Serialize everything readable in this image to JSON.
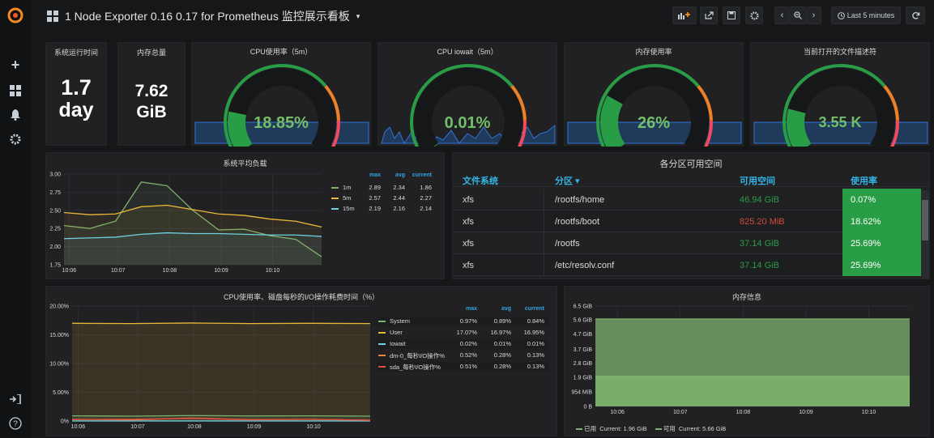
{
  "topbar": {
    "title": "1 Node Exporter 0.16 0.17 for Prometheus 监控展示看板",
    "time_range": "Last 5 minutes"
  },
  "sidebar": {
    "icons": [
      "grafana-logo-icon",
      "plus-icon",
      "dashboards-icon",
      "bell-icon",
      "gear-icon",
      "signin-icon",
      "help-icon"
    ]
  },
  "stats": {
    "uptime": {
      "title": "系统运行时间",
      "value": "1.7",
      "unit": "day"
    },
    "mem_total": {
      "title": "内存总量",
      "value": "7.62",
      "unit": "GiB"
    }
  },
  "gauges": [
    {
      "title": "CPU使用率（5m）",
      "value": "18.85%",
      "fraction": 0.1885
    },
    {
      "title": "CPU iowait（5m）",
      "value": "0.01%",
      "fraction": 0.0001
    },
    {
      "title": "内存使用率",
      "value": "26%",
      "fraction": 0.26
    },
    {
      "title": "当前打开的文件描述符",
      "value": "3.55 K",
      "fraction": 0.2
    }
  ],
  "load": {
    "title": "系统平均负载",
    "legend_headers": [
      "max",
      "avg",
      "current"
    ],
    "series": [
      {
        "name": "1m",
        "color": "#7eb26d",
        "max": "2.89",
        "avg": "2.34",
        "current": "1.86"
      },
      {
        "name": "5m",
        "color": "#eab839",
        "max": "2.57",
        "avg": "2.44",
        "current": "2.27"
      },
      {
        "name": "15m",
        "color": "#6ed0e0",
        "max": "2.19",
        "avg": "2.16",
        "current": "2.14"
      }
    ],
    "y_ticks": [
      "3.00",
      "2.75",
      "2.50",
      "2.25",
      "2.00",
      "1.75"
    ],
    "x_ticks": [
      "10:06",
      "10:07",
      "10:08",
      "10:09",
      "10:10"
    ]
  },
  "partitions": {
    "title": "各分区可用空间",
    "headers": [
      "文件系统",
      "分区 ▾",
      "可用空间",
      "使用率"
    ],
    "rows": [
      {
        "fs": "xfs",
        "mount": "/rootfs/home",
        "free": "46.94 GiB",
        "free_color": "#299c46",
        "usage": "0.07%"
      },
      {
        "fs": "xfs",
        "mount": "/rootfs/boot",
        "free": "825.20 MiB",
        "free_color": "#d44a3a",
        "usage": "18.62%"
      },
      {
        "fs": "xfs",
        "mount": "/rootfs",
        "free": "37.14 GiB",
        "free_color": "#299c46",
        "usage": "25.69%"
      },
      {
        "fs": "xfs",
        "mount": "/etc/resolv.conf",
        "free": "37.14 GiB",
        "free_color": "#299c46",
        "usage": "25.69%"
      }
    ]
  },
  "cpu_disk": {
    "title": "CPU使用率、磁盘每秒的I/O操作耗费时间（%）",
    "legend_headers": [
      "max",
      "avg",
      "current"
    ],
    "series": [
      {
        "name": "System",
        "color": "#7eb26d",
        "max": "0.97%",
        "avg": "0.89%",
        "current": "0.84%"
      },
      {
        "name": "User",
        "color": "#eab839",
        "max": "17.07%",
        "avg": "16.97%",
        "current": "16.95%"
      },
      {
        "name": "Iowait",
        "color": "#6ed0e0",
        "max": "0.02%",
        "avg": "0.01%",
        "current": "0.01%"
      },
      {
        "name": "dm-0_每秒I/O操作%",
        "color": "#ef843c",
        "max": "0.52%",
        "avg": "0.28%",
        "current": "0.13%"
      },
      {
        "name": "sda_每秒I/O操作%",
        "color": "#e24d42",
        "max": "0.51%",
        "avg": "0.28%",
        "current": "0.13%"
      }
    ],
    "y_ticks": [
      "20.00%",
      "15.00%",
      "10.00%",
      "5.00%",
      "0%"
    ],
    "x_ticks": [
      "10:06",
      "10:07",
      "10:08",
      "10:09",
      "10:10"
    ]
  },
  "memory": {
    "title": "内存信息",
    "y_ticks": [
      "6.5 GiB",
      "5.6 GiB",
      "4.7 GiB",
      "3.7 GiB",
      "2.8 GiB",
      "1.9 GiB",
      "954 MiB",
      "0 B"
    ],
    "x_ticks": [
      "10:06",
      "10:07",
      "10:08",
      "10:09",
      "10:10"
    ],
    "legend": [
      {
        "name": "已用",
        "color": "#7eb26d",
        "text": "Current: 1.96 GiB"
      },
      {
        "name": "可用",
        "color": "#7eb26d",
        "text": "Current: 5.66 GiB"
      }
    ]
  },
  "colors": {
    "green": "#299c46",
    "orange": "#ed8128",
    "red": "#f2495c",
    "blue_header": "#33b5e5"
  }
}
